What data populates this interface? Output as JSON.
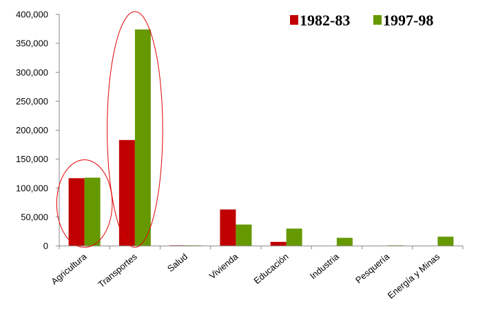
{
  "chart_data": {
    "type": "bar",
    "title": "",
    "xlabel": "",
    "ylabel": "",
    "categories": [
      "Agricultura",
      "Transportes",
      "Salud",
      "Vivienda",
      "Educación",
      "Industria",
      "Pesquería",
      "Energía y Minas"
    ],
    "series": [
      {
        "name": "1982-83",
        "color": "#c00000",
        "values": [
          117000,
          183000,
          1000,
          63000,
          7000,
          0,
          0,
          0
        ]
      },
      {
        "name": "1997-98",
        "color": "#669900",
        "values": [
          118000,
          374000,
          1000,
          37000,
          30000,
          14000,
          1000,
          16000
        ]
      }
    ],
    "ylim": [
      0,
      400000
    ],
    "yticks": [
      0,
      50000,
      100000,
      150000,
      200000,
      250000,
      300000,
      350000,
      400000
    ],
    "ytick_labels": [
      "0",
      "50,000",
      "100,000",
      "150,000",
      "200,000",
      "250,000",
      "300,000",
      "350,000",
      "400,000"
    ],
    "grid": false,
    "legend_position": "top-right",
    "highlights": [
      "Agricultura",
      "Transportes"
    ],
    "highlight_color": "#e00000"
  }
}
